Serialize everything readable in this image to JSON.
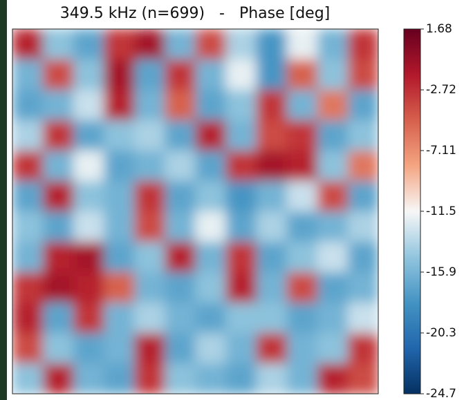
{
  "chart_data": {
    "type": "heatmap",
    "title": "349.5 kHz (n=699)   -   Phase [deg]",
    "colors": [
      "#053061",
      "#2166ac",
      "#4393c3",
      "#92c5de",
      "#f7f7f7",
      "#f4a582",
      "#d6604d",
      "#b2182b",
      "#67001f"
    ],
    "clim": [
      -24.7,
      1.68
    ],
    "cticks": [
      1.68,
      -2.72,
      -7.11,
      -11.5,
      -15.9,
      -20.3,
      -24.7
    ],
    "z": [
      [
        -2,
        -15,
        -17,
        -3,
        -1,
        -16,
        -4,
        -14,
        -18,
        -12,
        -16,
        -3
      ],
      [
        -16,
        -4,
        -15,
        -1,
        -17,
        -3,
        -16,
        -12,
        -18,
        -5,
        -15,
        -4
      ],
      [
        -17,
        -16,
        -13,
        -2,
        -16,
        -5,
        -17,
        -15,
        -3,
        -16,
        -6,
        -17
      ],
      [
        -14,
        -3,
        -17,
        -15,
        -14,
        -17,
        -2,
        -16,
        -4,
        -3,
        -17,
        -15
      ],
      [
        -3,
        -16,
        -12,
        -17,
        -16,
        -14,
        -17,
        -3,
        -1,
        -2,
        -15,
        -6
      ],
      [
        -17,
        -2,
        -15,
        -16,
        -3,
        -17,
        -15,
        -18,
        -16,
        -13,
        -4,
        -17
      ],
      [
        -15,
        -17,
        -13,
        -16,
        -4,
        -16,
        -12,
        -17,
        -14,
        -17,
        -16,
        -14
      ],
      [
        -16,
        -2,
        -1,
        -17,
        -15,
        -2,
        -16,
        -3,
        -17,
        -15,
        -13,
        -17
      ],
      [
        -3,
        -1,
        -2,
        -5,
        -16,
        -17,
        -15,
        -2,
        -16,
        -4,
        -17,
        -16
      ],
      [
        -2,
        -17,
        -3,
        -16,
        -14,
        -16,
        -17,
        -15,
        -15,
        -17,
        -16,
        -13
      ],
      [
        -4,
        -15,
        -17,
        -16,
        -2,
        -17,
        -14,
        -16,
        -3,
        -16,
        -15,
        -3
      ],
      [
        -15,
        -2,
        -16,
        -17,
        -3,
        -15,
        -16,
        -17,
        -14,
        -16,
        -2,
        -4
      ]
    ]
  }
}
